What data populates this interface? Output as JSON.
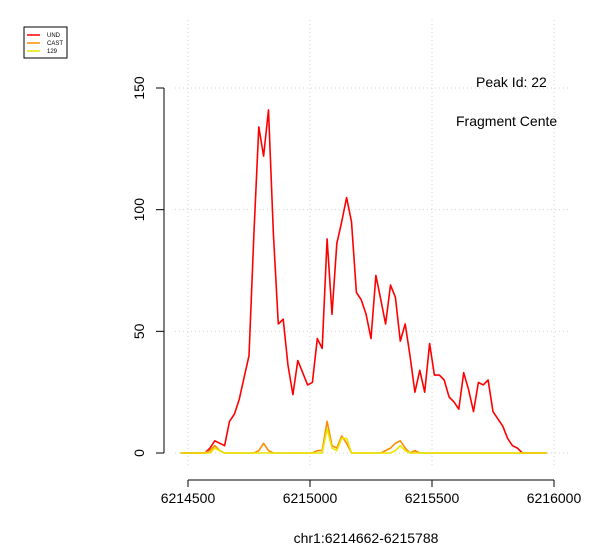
{
  "chart_data": {
    "type": "line",
    "xlabel": "chr1:6214662-6215788",
    "ylabel": "",
    "xlim": [
      6214460,
      6215990
    ],
    "ylim": [
      0,
      150
    ],
    "grid": true,
    "legend_position": "top-left",
    "annotations": [
      "Peak Id: 22",
      "Fragment Cente"
    ],
    "x_ticks": [
      6214500,
      6215000,
      6215500,
      6216000
    ],
    "x_tick_labels": [
      "6214500",
      "6215000",
      "6215500",
      "6216000"
    ],
    "y_ticks": [
      0,
      50,
      100,
      150
    ],
    "y_tick_labels": [
      "0",
      "50",
      "100",
      "150"
    ],
    "series": [
      {
        "name": "UND",
        "color": "#ff0000",
        "points": [
          [
            6214470,
            0
          ],
          [
            6214570,
            0
          ],
          [
            6214590,
            2
          ],
          [
            6214610,
            5
          ],
          [
            6214650,
            3
          ],
          [
            6214670,
            13
          ],
          [
            6214690,
            16
          ],
          [
            6214710,
            22
          ],
          [
            6214730,
            31
          ],
          [
            6214750,
            40
          ],
          [
            6214770,
            90
          ],
          [
            6214790,
            134
          ],
          [
            6214810,
            122
          ],
          [
            6214830,
            141
          ],
          [
            6214850,
            90
          ],
          [
            6214870,
            53
          ],
          [
            6214890,
            55
          ],
          [
            6214910,
            36
          ],
          [
            6214930,
            24
          ],
          [
            6214950,
            38
          ],
          [
            6214970,
            33
          ],
          [
            6214990,
            28
          ],
          [
            6215010,
            29
          ],
          [
            6215030,
            47
          ],
          [
            6215050,
            43
          ],
          [
            6215070,
            88
          ],
          [
            6215090,
            57
          ],
          [
            6215110,
            86
          ],
          [
            6215130,
            95
          ],
          [
            6215150,
            105
          ],
          [
            6215170,
            95
          ],
          [
            6215190,
            66
          ],
          [
            6215210,
            63
          ],
          [
            6215230,
            57
          ],
          [
            6215250,
            47
          ],
          [
            6215270,
            73
          ],
          [
            6215290,
            63
          ],
          [
            6215310,
            53
          ],
          [
            6215330,
            69
          ],
          [
            6215350,
            64
          ],
          [
            6215370,
            46
          ],
          [
            6215390,
            53
          ],
          [
            6215410,
            40
          ],
          [
            6215430,
            25
          ],
          [
            6215450,
            34
          ],
          [
            6215470,
            25
          ],
          [
            6215490,
            45
          ],
          [
            6215510,
            32
          ],
          [
            6215530,
            32
          ],
          [
            6215550,
            30
          ],
          [
            6215570,
            23
          ],
          [
            6215590,
            21
          ],
          [
            6215610,
            18
          ],
          [
            6215630,
            33
          ],
          [
            6215650,
            26
          ],
          [
            6215670,
            17
          ],
          [
            6215690,
            29
          ],
          [
            6215710,
            28
          ],
          [
            6215730,
            30
          ],
          [
            6215750,
            17
          ],
          [
            6215770,
            14
          ],
          [
            6215790,
            11
          ],
          [
            6215810,
            6
          ],
          [
            6215830,
            3
          ],
          [
            6215850,
            2
          ],
          [
            6215870,
            0
          ],
          [
            6215970,
            0
          ]
        ]
      },
      {
        "name": "CAST",
        "color": "#ff8c00",
        "points": [
          [
            6214470,
            0
          ],
          [
            6214570,
            0
          ],
          [
            6214590,
            1
          ],
          [
            6214610,
            3
          ],
          [
            6214630,
            1
          ],
          [
            6214650,
            0
          ],
          [
            6214770,
            0
          ],
          [
            6214790,
            1
          ],
          [
            6214810,
            4
          ],
          [
            6214830,
            1
          ],
          [
            6214850,
            0
          ],
          [
            6215010,
            0
          ],
          [
            6215030,
            1
          ],
          [
            6215050,
            1
          ],
          [
            6215070,
            13
          ],
          [
            6215090,
            3
          ],
          [
            6215110,
            2
          ],
          [
            6215130,
            7
          ],
          [
            6215150,
            4
          ],
          [
            6215170,
            0
          ],
          [
            6215290,
            0
          ],
          [
            6215310,
            1
          ],
          [
            6215330,
            2
          ],
          [
            6215350,
            4
          ],
          [
            6215370,
            5
          ],
          [
            6215390,
            2
          ],
          [
            6215410,
            0
          ],
          [
            6215430,
            1
          ],
          [
            6215450,
            0
          ],
          [
            6215970,
            0
          ]
        ]
      },
      {
        "name": "129",
        "color": "#e6e600",
        "points": [
          [
            6214470,
            0
          ],
          [
            6214590,
            0
          ],
          [
            6214610,
            2
          ],
          [
            6214630,
            1
          ],
          [
            6214650,
            0
          ],
          [
            6215050,
            0
          ],
          [
            6215070,
            10
          ],
          [
            6215090,
            2
          ],
          [
            6215110,
            1
          ],
          [
            6215130,
            6
          ],
          [
            6215150,
            6
          ],
          [
            6215170,
            0
          ],
          [
            6215330,
            0
          ],
          [
            6215350,
            1
          ],
          [
            6215370,
            3
          ],
          [
            6215390,
            1
          ],
          [
            6215410,
            0
          ],
          [
            6215970,
            0
          ]
        ]
      }
    ]
  }
}
